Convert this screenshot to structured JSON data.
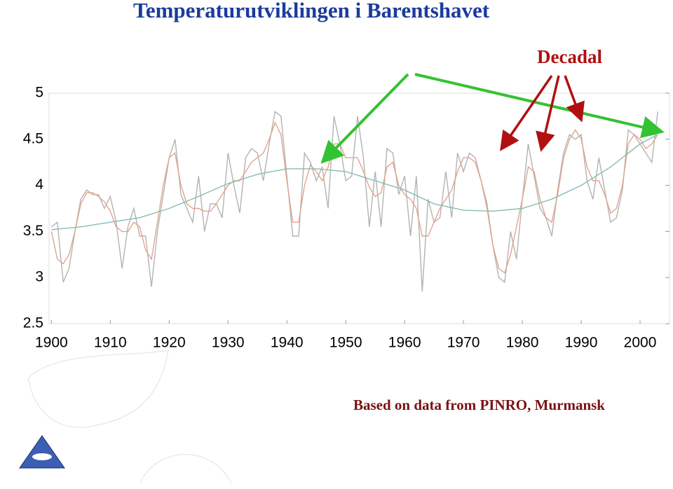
{
  "chart_data": {
    "type": "line",
    "title": "Temperaturutviklingen i Barentshavet",
    "annotation": "Decadal",
    "source": "Based on data from PINRO, Murmansk",
    "xlim": [
      1899.6,
      2005
    ],
    "xticks": [
      1900,
      1910,
      1920,
      1930,
      1940,
      1950,
      1960,
      1970,
      1980,
      1990,
      2000
    ],
    "ylim": [
      2.5,
      5
    ],
    "yticks": [
      2.5,
      3,
      3.5,
      4,
      4.5,
      5
    ],
    "series": [
      {
        "color": "#b3b3b3",
        "x": [
          1900,
          1901,
          1902,
          1903,
          1904,
          1905,
          1906,
          1907,
          1908,
          1909,
          1910,
          1911,
          1912,
          1913,
          1914,
          1915,
          1916,
          1917,
          1918,
          1919,
          1920,
          1921,
          1922,
          1923,
          1924,
          1925,
          1926,
          1927,
          1928,
          1929,
          1930,
          1931,
          1932,
          1933,
          1934,
          1935,
          1936,
          1937,
          1938,
          1939,
          1940,
          1941,
          1942,
          1943,
          1944,
          1945,
          1946,
          1947,
          1948,
          1949,
          1950,
          1951,
          1952,
          1953,
          1954,
          1955,
          1956,
          1957,
          1958,
          1959,
          1960,
          1961,
          1962,
          1963,
          1964,
          1965,
          1966,
          1967,
          1968,
          1969,
          1970,
          1971,
          1972,
          1973,
          1974,
          1975,
          1976,
          1977,
          1978,
          1979,
          1980,
          1981,
          1982,
          1983,
          1984,
          1985,
          1986,
          1987,
          1988,
          1989,
          1990,
          1991,
          1992,
          1993,
          1994,
          1995,
          1996,
          1997,
          1998,
          1999,
          2000,
          2001,
          2002,
          2003
        ],
        "values": [
          3.55,
          3.6,
          2.95,
          3.1,
          3.5,
          3.85,
          3.95,
          3.9,
          3.9,
          3.75,
          3.88,
          3.6,
          3.1,
          3.55,
          3.75,
          3.45,
          3.45,
          2.9,
          3.5,
          3.9,
          4.3,
          4.5,
          3.9,
          3.75,
          3.6,
          4.1,
          3.5,
          3.8,
          3.8,
          3.65,
          4.35,
          4.0,
          3.7,
          4.3,
          4.4,
          4.35,
          4.05,
          4.45,
          4.8,
          4.75,
          4.1,
          3.45,
          3.45,
          4.35,
          4.25,
          4.05,
          4.2,
          3.75,
          4.75,
          4.45,
          4.05,
          4.1,
          4.75,
          4.3,
          3.55,
          4.15,
          3.55,
          4.4,
          4.35,
          3.9,
          4.1,
          3.45,
          4.1,
          2.85,
          3.85,
          3.6,
          3.65,
          4.15,
          3.65,
          4.35,
          4.15,
          4.35,
          4.3,
          4.05,
          3.8,
          3.35,
          3.0,
          2.95,
          3.5,
          3.2,
          3.85,
          4.45,
          4.1,
          3.75,
          3.65,
          3.45,
          3.95,
          4.35,
          4.55,
          4.5,
          4.55,
          4.05,
          3.85,
          4.3,
          3.95,
          3.6,
          3.65,
          3.95,
          4.6,
          4.55,
          4.45,
          4.35,
          4.25,
          4.8
        ]
      },
      {
        "color": "#e3a48f",
        "x": [
          1900,
          1901,
          1902,
          1903,
          1904,
          1905,
          1906,
          1907,
          1908,
          1909,
          1910,
          1911,
          1912,
          1913,
          1914,
          1915,
          1916,
          1917,
          1918,
          1919,
          1920,
          1921,
          1922,
          1923,
          1924,
          1925,
          1926,
          1927,
          1928,
          1929,
          1930,
          1931,
          1932,
          1933,
          1934,
          1935,
          1936,
          1937,
          1938,
          1939,
          1940,
          1941,
          1942,
          1943,
          1944,
          1945,
          1946,
          1947,
          1948,
          1949,
          1950,
          1951,
          1952,
          1953,
          1954,
          1955,
          1956,
          1957,
          1958,
          1959,
          1960,
          1961,
          1962,
          1963,
          1964,
          1965,
          1966,
          1967,
          1968,
          1969,
          1970,
          1971,
          1972,
          1973,
          1974,
          1975,
          1976,
          1977,
          1978,
          1979,
          1980,
          1981,
          1982,
          1983,
          1984,
          1985,
          1986,
          1987,
          1988,
          1989,
          1990,
          1991,
          1992,
          1993,
          1994,
          1995,
          1996,
          1997,
          1998,
          1999,
          2000,
          2001,
          2002,
          2003
        ],
        "values": [
          3.5,
          3.2,
          3.15,
          3.25,
          3.5,
          3.8,
          3.92,
          3.92,
          3.88,
          3.82,
          3.72,
          3.55,
          3.5,
          3.5,
          3.6,
          3.55,
          3.3,
          3.2,
          3.6,
          4.0,
          4.3,
          4.35,
          4.0,
          3.8,
          3.75,
          3.75,
          3.72,
          3.72,
          3.8,
          3.9,
          4.0,
          4.05,
          4.05,
          4.15,
          4.25,
          4.3,
          4.35,
          4.5,
          4.68,
          4.55,
          4.05,
          3.6,
          3.6,
          4.0,
          4.22,
          4.15,
          4.05,
          4.2,
          4.45,
          4.45,
          4.3,
          4.3,
          4.3,
          4.15,
          3.98,
          3.88,
          3.92,
          4.2,
          4.25,
          4.0,
          3.9,
          3.85,
          3.75,
          3.45,
          3.45,
          3.6,
          3.75,
          3.85,
          3.95,
          4.15,
          4.3,
          4.3,
          4.25,
          4.05,
          3.75,
          3.35,
          3.1,
          3.05,
          3.25,
          3.55,
          3.85,
          4.2,
          4.15,
          3.85,
          3.65,
          3.6,
          3.9,
          4.3,
          4.5,
          4.6,
          4.5,
          4.2,
          4.05,
          4.05,
          3.9,
          3.7,
          3.75,
          4.0,
          4.45,
          4.55,
          4.5,
          4.4,
          4.45,
          4.55
        ]
      },
      {
        "color": "#86bdb4",
        "x": [
          1900,
          1905,
          1910,
          1915,
          1920,
          1925,
          1930,
          1935,
          1940,
          1945,
          1950,
          1955,
          1960,
          1965,
          1970,
          1975,
          1980,
          1985,
          1990,
          1995,
          2000,
          2003
        ],
        "values": [
          3.52,
          3.55,
          3.6,
          3.65,
          3.75,
          3.88,
          4.02,
          4.12,
          4.18,
          4.18,
          4.15,
          4.05,
          3.95,
          3.8,
          3.73,
          3.72,
          3.75,
          3.85,
          4.0,
          4.2,
          4.45,
          4.55
        ]
      }
    ]
  }
}
